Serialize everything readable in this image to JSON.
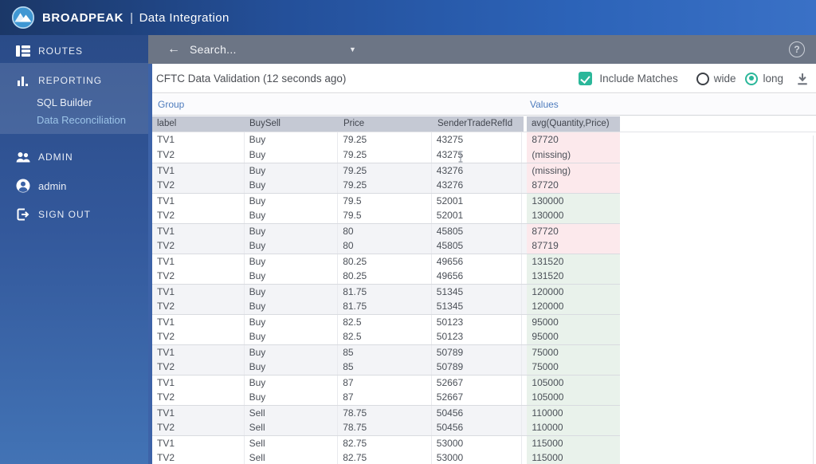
{
  "brand": {
    "name_part1": "BROAD",
    "name_part2": "PEAK",
    "separator": "|",
    "product": "Data Integration"
  },
  "sidebar": {
    "routes": "ROUTES",
    "reporting": "REPORTING",
    "sql_builder": "SQL Builder",
    "data_reconciliation": "Data Reconciliation",
    "admin_section": "ADMIN",
    "user_name": "admin",
    "sign_out": "SIGN OUT"
  },
  "search": {
    "back_icon": "←",
    "placeholder": "Search...",
    "caret_icon": "▼",
    "help_icon": "?"
  },
  "toolbar": {
    "title": "CFTC Data Validation (12 seconds ago)",
    "include_matches_label": "Include Matches",
    "include_matches_checked": true,
    "layout_options": [
      {
        "label": "wide",
        "selected": false
      },
      {
        "label": "long",
        "selected": true
      }
    ],
    "download_icon": "download"
  },
  "table": {
    "group_header": "Group",
    "values_header": "Values",
    "columns": [
      "label",
      "BuySell",
      "Price",
      "SenderTradeRefId"
    ],
    "values_column": "avg(Quantity,Price)",
    "rows": [
      [
        "TV1",
        "Buy",
        "79.25",
        "43275",
        "87720",
        "mismatch"
      ],
      [
        "TV2",
        "Buy",
        "79.25",
        "43275",
        "(missing)",
        "mismatch"
      ],
      [
        "TV1",
        "Buy",
        "79.25",
        "43276",
        "(missing)",
        "mismatch"
      ],
      [
        "TV2",
        "Buy",
        "79.25",
        "43276",
        "87720",
        "mismatch"
      ],
      [
        "TV1",
        "Buy",
        "79.5",
        "52001",
        "130000",
        "match"
      ],
      [
        "TV2",
        "Buy",
        "79.5",
        "52001",
        "130000",
        "match"
      ],
      [
        "TV1",
        "Buy",
        "80",
        "45805",
        "87720",
        "mismatch"
      ],
      [
        "TV2",
        "Buy",
        "80",
        "45805",
        "87719",
        "mismatch"
      ],
      [
        "TV1",
        "Buy",
        "80.25",
        "49656",
        "131520",
        "match"
      ],
      [
        "TV2",
        "Buy",
        "80.25",
        "49656",
        "131520",
        "match"
      ],
      [
        "TV1",
        "Buy",
        "81.75",
        "51345",
        "120000",
        "match"
      ],
      [
        "TV2",
        "Buy",
        "81.75",
        "51345",
        "120000",
        "match"
      ],
      [
        "TV1",
        "Buy",
        "82.5",
        "50123",
        "95000",
        "match"
      ],
      [
        "TV2",
        "Buy",
        "82.5",
        "50123",
        "95000",
        "match"
      ],
      [
        "TV1",
        "Buy",
        "85",
        "50789",
        "75000",
        "match"
      ],
      [
        "TV2",
        "Buy",
        "85",
        "50789",
        "75000",
        "match"
      ],
      [
        "TV1",
        "Buy",
        "87",
        "52667",
        "105000",
        "match"
      ],
      [
        "TV2",
        "Buy",
        "87",
        "52667",
        "105000",
        "match"
      ],
      [
        "TV1",
        "Sell",
        "78.75",
        "50456",
        "110000",
        "match"
      ],
      [
        "TV2",
        "Sell",
        "78.75",
        "50456",
        "110000",
        "match"
      ],
      [
        "TV1",
        "Sell",
        "82.75",
        "53000",
        "115000",
        "match"
      ],
      [
        "TV2",
        "Sell",
        "82.75",
        "53000",
        "115000",
        "match"
      ]
    ]
  },
  "colors": {
    "accent_teal": "#2bb79a",
    "mismatch_bg": "#fce9ec",
    "match_bg": "#e9f2eb",
    "topbar_blue": "#2c63b8",
    "sidebar_blue": "#33589b",
    "searchbar_grey": "#6c7585"
  }
}
